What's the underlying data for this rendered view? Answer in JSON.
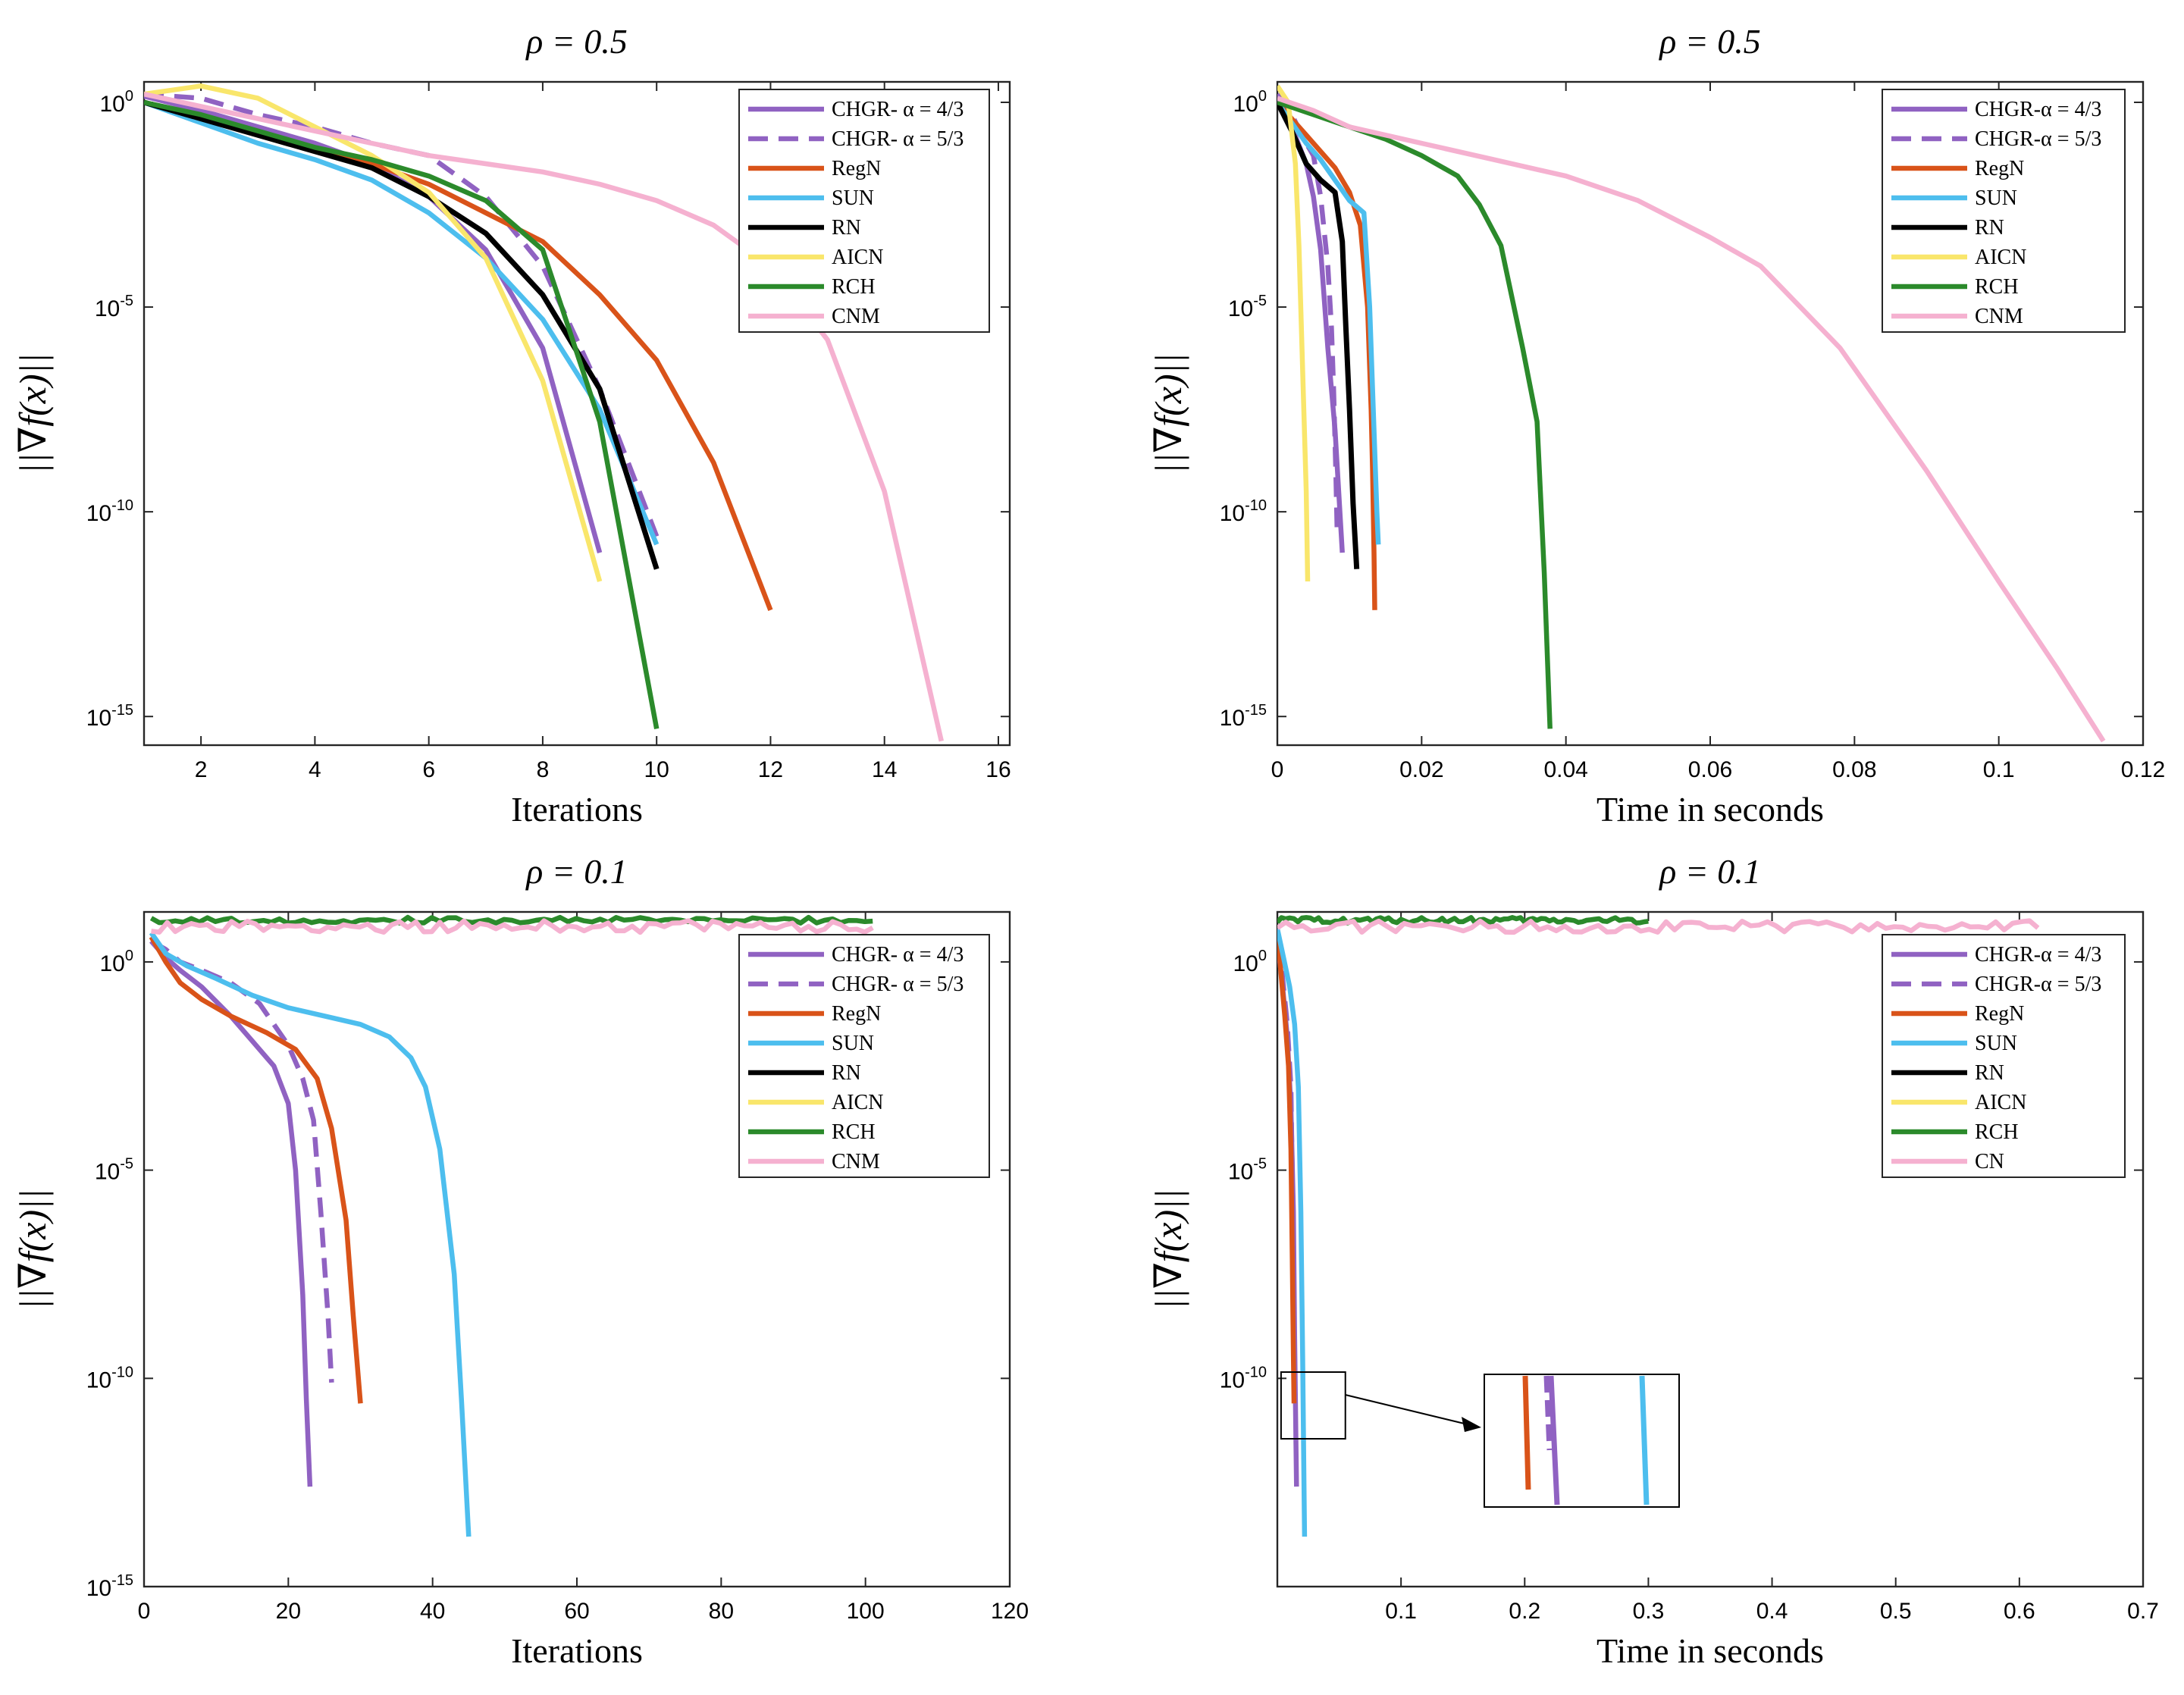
{
  "colors": {
    "CHGR": "#9062c2",
    "RegN": "#d95319",
    "SUN": "#4dbeee",
    "RN": "#000000",
    "AICN": "#f9e66b",
    "RCH": "#2b8a2b",
    "CNM": "#f5b1d0"
  },
  "chart_data": [
    {
      "type": "line",
      "title": "ρ = 0.5",
      "xlabel": "Iterations",
      "ylabel": "||∇f(x)||",
      "xlim": [
        1,
        16.2
      ],
      "xticks": [
        2,
        4,
        6,
        8,
        10,
        12,
        14,
        16
      ],
      "ylog_lim": [
        -15.7,
        0.5
      ],
      "ytick_exponents": [
        0,
        -5,
        -10,
        -15
      ],
      "yticks": [
        "10^0",
        "10^-5",
        "10^-10",
        "10^-15"
      ],
      "legend_position": "top-right",
      "series": [
        {
          "name": "CHGR- α = 4/3",
          "color_key": "CHGR",
          "style": "solid",
          "x": [
            1,
            2,
            3,
            4,
            5,
            6,
            7,
            8,
            9
          ],
          "log10y": [
            0.15,
            -0.2,
            -0.6,
            -1.0,
            -1.5,
            -2.3,
            -3.6,
            -6.0,
            -11.0
          ]
        },
        {
          "name": "CHGR- α = 5/3",
          "color_key": "CHGR",
          "style": "dash",
          "x": [
            1,
            2,
            3,
            4,
            5,
            6,
            7,
            8,
            9,
            10
          ],
          "log10y": [
            0.2,
            0.1,
            -0.3,
            -0.6,
            -1.0,
            -1.3,
            -2.3,
            -4.0,
            -7.0,
            -10.6
          ]
        },
        {
          "name": "RegN",
          "color_key": "RegN",
          "style": "solid",
          "x": [
            1,
            2,
            3,
            4,
            5,
            6,
            7,
            8,
            9,
            10,
            11,
            12
          ],
          "log10y": [
            0,
            -0.4,
            -0.8,
            -1.2,
            -1.5,
            -2.0,
            -2.7,
            -3.4,
            -4.7,
            -6.3,
            -8.8,
            -12.4
          ]
        },
        {
          "name": "SUN",
          "color_key": "SUN",
          "style": "solid",
          "x": [
            1,
            2,
            3,
            4,
            5,
            6,
            7,
            8,
            9,
            10
          ],
          "log10y": [
            0,
            -0.5,
            -1.0,
            -1.4,
            -1.9,
            -2.7,
            -3.8,
            -5.3,
            -7.5,
            -10.8
          ]
        },
        {
          "name": "RN",
          "color_key": "RN",
          "style": "solid",
          "x": [
            1,
            2,
            3,
            4,
            5,
            6,
            7,
            8,
            9,
            10
          ],
          "log10y": [
            0,
            -0.4,
            -0.8,
            -1.2,
            -1.6,
            -2.3,
            -3.2,
            -4.7,
            -7.0,
            -11.4
          ]
        },
        {
          "name": "AICN",
          "color_key": "AICN",
          "style": "solid",
          "x": [
            1,
            2,
            3,
            4,
            5,
            6,
            7,
            8,
            9
          ],
          "log10y": [
            0.2,
            0.4,
            0.1,
            -0.6,
            -1.3,
            -2.2,
            -3.8,
            -6.8,
            -11.7
          ]
        },
        {
          "name": "RCH",
          "color_key": "RCH",
          "style": "solid",
          "x": [
            1,
            2,
            3,
            4,
            5,
            6,
            7,
            8,
            9,
            10
          ],
          "log10y": [
            0,
            -0.3,
            -0.7,
            -1.1,
            -1.4,
            -1.8,
            -2.4,
            -3.6,
            -7.8,
            -15.3
          ]
        },
        {
          "name": "CNM",
          "color_key": "CNM",
          "style": "solid",
          "x": [
            1,
            2,
            3,
            4,
            5,
            6,
            7,
            8,
            9,
            10,
            11,
            12,
            13,
            14,
            15
          ],
          "log10y": [
            0.2,
            -0.1,
            -0.4,
            -0.7,
            -1.0,
            -1.3,
            -1.5,
            -1.7,
            -2.0,
            -2.4,
            -3.0,
            -4.0,
            -5.8,
            -9.5,
            -15.6
          ]
        }
      ]
    },
    {
      "type": "line",
      "title": "ρ = 0.5",
      "xlabel": "Time in seconds",
      "ylabel": "||∇f(x)||",
      "xlim": [
        0,
        0.12
      ],
      "xticks": [
        0,
        0.02,
        0.04,
        0.06,
        0.08,
        0.1,
        0.12
      ],
      "ylog_lim": [
        -15.7,
        0.5
      ],
      "ytick_exponents": [
        0,
        -5,
        -10,
        -15
      ],
      "yticks": [
        "10^0",
        "10^-5",
        "10^-10",
        "10^-15"
      ],
      "legend_position": "top-right",
      "series": [
        {
          "name": "CHGR-α = 4/3",
          "color_key": "CHGR",
          "style": "solid",
          "x": [
            0,
            0.002,
            0.004,
            0.005,
            0.006,
            0.007,
            0.008,
            0.0085,
            0.009
          ],
          "log10y": [
            0.15,
            -0.6,
            -1.5,
            -2.3,
            -3.6,
            -6.0,
            -8.0,
            -9.5,
            -11.0
          ]
        },
        {
          "name": "CHGR-α = 5/3",
          "color_key": "CHGR",
          "style": "dash",
          "x": [
            0,
            0.002,
            0.004,
            0.005,
            0.006,
            0.007,
            0.0075,
            0.0078,
            0.0081,
            0.0083
          ],
          "log10y": [
            0.2,
            -0.3,
            -1.0,
            -1.3,
            -2.3,
            -4.0,
            -5.5,
            -7.0,
            -9.0,
            -10.6
          ]
        },
        {
          "name": "RegN",
          "color_key": "RegN",
          "style": "solid",
          "x": [
            0,
            0.002,
            0.004,
            0.006,
            0.008,
            0.01,
            0.0115,
            0.0125,
            0.013,
            0.0132,
            0.0134,
            0.0135
          ],
          "log10y": [
            0,
            -0.4,
            -0.8,
            -1.2,
            -1.6,
            -2.2,
            -3.0,
            -5.0,
            -7.5,
            -9.0,
            -11.0,
            -12.4
          ]
        },
        {
          "name": "SUN",
          "color_key": "SUN",
          "style": "solid",
          "x": [
            0,
            0.002,
            0.004,
            0.006,
            0.008,
            0.01,
            0.012,
            0.0128,
            0.0134,
            0.0138,
            0.014
          ],
          "log10y": [
            0,
            -0.5,
            -1.0,
            -1.4,
            -1.9,
            -2.4,
            -2.7,
            -5.0,
            -8.0,
            -10.0,
            -10.8
          ]
        },
        {
          "name": "RN",
          "color_key": "RN",
          "style": "solid",
          "x": [
            0,
            0.002,
            0.004,
            0.006,
            0.008,
            0.009,
            0.0095,
            0.01,
            0.0105,
            0.011
          ],
          "log10y": [
            0,
            -0.7,
            -1.5,
            -1.9,
            -2.2,
            -3.4,
            -5.5,
            -7.5,
            -9.8,
            -11.4
          ]
        },
        {
          "name": "AICN",
          "color_key": "AICN",
          "style": "solid",
          "x": [
            0,
            0.0015,
            0.0025,
            0.003,
            0.0035,
            0.004,
            0.0042
          ],
          "log10y": [
            0.4,
            0.0,
            -1.5,
            -3.5,
            -6.5,
            -9.5,
            -11.7
          ]
        },
        {
          "name": "RCH",
          "color_key": "RCH",
          "style": "solid",
          "x": [
            0,
            0.005,
            0.01,
            0.015,
            0.02,
            0.025,
            0.028,
            0.031,
            0.034,
            0.036,
            0.037,
            0.0378
          ],
          "log10y": [
            0,
            -0.3,
            -0.6,
            -0.9,
            -1.3,
            -1.8,
            -2.5,
            -3.5,
            -6.0,
            -7.8,
            -11.5,
            -15.3
          ]
        },
        {
          "name": "CNM",
          "color_key": "CNM",
          "style": "solid",
          "x": [
            0,
            0.005,
            0.01,
            0.02,
            0.03,
            0.04,
            0.05,
            0.06,
            0.067,
            0.078,
            0.09,
            0.1,
            0.108,
            0.1145
          ],
          "log10y": [
            0.1,
            -0.2,
            -0.6,
            -1.0,
            -1.4,
            -1.8,
            -2.4,
            -3.3,
            -4.0,
            -6.0,
            -9.0,
            -11.7,
            -13.8,
            -15.6
          ]
        }
      ]
    },
    {
      "type": "line",
      "title": "ρ = 0.1",
      "xlabel": "Iterations",
      "ylabel": "||∇f(x)||",
      "xlim": [
        0,
        120
      ],
      "xticks": [
        0,
        20,
        40,
        60,
        80,
        100,
        120
      ],
      "ylog_lim": [
        -15,
        1.2
      ],
      "ytick_exponents": [
        0,
        -5,
        -10,
        -15
      ],
      "yticks": [
        "10^0",
        "10^-5",
        "10^-10",
        "10^-15"
      ],
      "legend_position": "top-right",
      "series": [
        {
          "name": "CHGR- α = 4/3",
          "color_key": "CHGR",
          "style": "solid",
          "x": [
            1,
            3,
            5,
            8,
            12,
            15,
            18,
            20,
            21,
            22,
            22.5,
            23
          ],
          "log10y": [
            0.5,
            0.1,
            -0.2,
            -0.6,
            -1.3,
            -1.9,
            -2.5,
            -3.4,
            -5.0,
            -8.0,
            -10.5,
            -12.6
          ]
        },
        {
          "name": "CHGR- α = 5/3",
          "color_key": "CHGR",
          "style": "dash",
          "x": [
            1,
            3,
            5,
            8,
            12,
            16,
            20,
            22,
            23.5,
            24.5,
            25.5,
            26
          ],
          "log10y": [
            0.5,
            0.3,
            0.0,
            -0.2,
            -0.5,
            -1.0,
            -2.0,
            -2.8,
            -3.8,
            -6.0,
            -8.5,
            -10.1
          ]
        },
        {
          "name": "RegN",
          "color_key": "RegN",
          "style": "solid",
          "x": [
            1,
            3,
            5,
            8,
            12,
            17,
            21,
            24,
            26,
            28,
            29,
            30
          ],
          "log10y": [
            0.6,
            0.0,
            -0.5,
            -0.9,
            -1.3,
            -1.7,
            -2.1,
            -2.8,
            -4.0,
            -6.2,
            -8.5,
            -10.6
          ]
        },
        {
          "name": "SUN",
          "color_key": "SUN",
          "style": "solid",
          "x": [
            1,
            3,
            6,
            10,
            15,
            20,
            25,
            30,
            34,
            37,
            39,
            41,
            43,
            44,
            45
          ],
          "log10y": [
            0.7,
            0.2,
            -0.1,
            -0.4,
            -0.8,
            -1.1,
            -1.3,
            -1.5,
            -1.8,
            -2.3,
            -3.0,
            -4.5,
            -7.5,
            -10.5,
            -13.8
          ]
        },
        {
          "name": "RN",
          "color_key": "RN",
          "style": "solid",
          "x": [],
          "log10y": []
        },
        {
          "name": "AICN",
          "color_key": "AICN",
          "style": "solid",
          "x": [],
          "log10y": []
        },
        {
          "name": "RCH",
          "color_key": "RCH",
          "style": "solid",
          "x": [
            1,
            101
          ],
          "log10y": [
            1.0,
            1.0
          ],
          "noisy": true
        },
        {
          "name": "CNM",
          "color_key": "CNM",
          "style": "solid",
          "x": [
            1,
            101
          ],
          "log10y": [
            0.85,
            0.85
          ],
          "noisy": true
        }
      ]
    },
    {
      "type": "line",
      "title": "ρ = 0.1",
      "xlabel": "Time in seconds",
      "ylabel": "||∇f(x)||",
      "xlim": [
        0,
        0.7
      ],
      "xticks": [
        0.1,
        0.2,
        0.3,
        0.4,
        0.5,
        0.6,
        0.7
      ],
      "ylog_lim": [
        -15,
        1.2
      ],
      "ytick_exponents": [
        0,
        -5,
        -10
      ],
      "yticks": [
        "10^0",
        "10^-5",
        "10^-10"
      ],
      "legend_position": "top-right",
      "inset": "zoom-box",
      "series": [
        {
          "name": "CHGR-α = 4/3",
          "color_key": "CHGR",
          "style": "solid",
          "x": [
            0,
            0.004,
            0.008,
            0.011,
            0.013,
            0.014,
            0.015,
            0.0155
          ],
          "log10y": [
            0.5,
            -0.5,
            -1.8,
            -3.5,
            -6.0,
            -9.0,
            -11.5,
            -12.6
          ]
        },
        {
          "name": "CHGR-α = 5/3",
          "color_key": "CHGR",
          "style": "dash",
          "x": [
            0,
            0.004,
            0.008,
            0.011,
            0.0125,
            0.0135,
            0.014
          ],
          "log10y": [
            0.5,
            -0.3,
            -1.5,
            -3.0,
            -6.0,
            -8.5,
            -10.1
          ]
        },
        {
          "name": "RegN",
          "color_key": "RegN",
          "style": "solid",
          "x": [
            0,
            0.003,
            0.006,
            0.009,
            0.011,
            0.012,
            0.013,
            0.0135
          ],
          "log10y": [
            0.8,
            -0.3,
            -1.3,
            -2.5,
            -4.5,
            -7.0,
            -9.5,
            -10.6
          ]
        },
        {
          "name": "SUN",
          "color_key": "SUN",
          "style": "solid",
          "x": [
            0,
            0.005,
            0.01,
            0.014,
            0.017,
            0.019,
            0.0205,
            0.0215,
            0.022
          ],
          "log10y": [
            0.8,
            0.1,
            -0.6,
            -1.5,
            -3.0,
            -6.0,
            -9.5,
            -12.5,
            -13.8
          ]
        },
        {
          "name": "RN",
          "color_key": "RN",
          "style": "solid",
          "x": [],
          "log10y": []
        },
        {
          "name": "AICN",
          "color_key": "AICN",
          "style": "solid",
          "x": [],
          "log10y": []
        },
        {
          "name": "RCH",
          "color_key": "RCH",
          "style": "solid",
          "x": [
            0,
            0.3
          ],
          "log10y": [
            1.0,
            1.0
          ],
          "noisy": true
        },
        {
          "name": "CN",
          "color_key": "CNM",
          "style": "solid",
          "x": [
            0,
            0.615
          ],
          "log10y": [
            0.85,
            0.85
          ],
          "noisy": true
        }
      ]
    }
  ]
}
